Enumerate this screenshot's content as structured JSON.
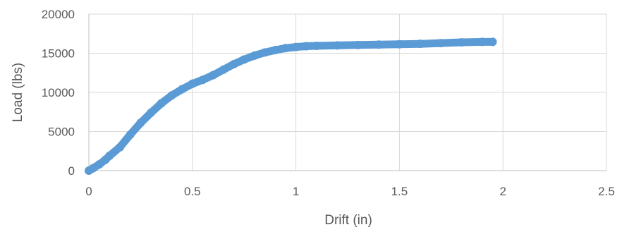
{
  "chart_data": {
    "type": "scatter",
    "title": "",
    "xlabel": "Drift (in)",
    "ylabel": "Load (lbs)",
    "xlim": [
      0,
      2.5
    ],
    "ylim": [
      0,
      20000
    ],
    "x_ticks": [
      "0",
      "0.5",
      "1",
      "1.5",
      "2",
      "2.5"
    ],
    "y_ticks": [
      "0",
      "5000",
      "10000",
      "15000",
      "20000"
    ],
    "grid": "vertical and horizontal major gridlines",
    "legend": "none",
    "marker_color": "#5b9bd5",
    "series": [
      {
        "x": [
          0,
          0.02,
          0.05,
          0.08,
          0.1,
          0.15,
          0.2,
          0.25,
          0.3,
          0.35,
          0.4,
          0.45,
          0.5,
          0.55,
          0.6,
          0.65,
          0.7,
          0.75,
          0.8,
          0.85,
          0.9,
          0.95,
          1.0,
          1.05,
          1.1,
          1.2,
          1.3,
          1.4,
          1.5,
          1.6,
          1.7,
          1.8,
          1.9,
          1.95
        ],
        "y": [
          0,
          300,
          800,
          1400,
          1900,
          3000,
          4600,
          6100,
          7400,
          8600,
          9600,
          10400,
          11100,
          11600,
          12200,
          12900,
          13600,
          14200,
          14700,
          15100,
          15400,
          15650,
          15800,
          15900,
          15950,
          16000,
          16050,
          16100,
          16150,
          16200,
          16300,
          16400,
          16450,
          16450
        ]
      }
    ]
  }
}
